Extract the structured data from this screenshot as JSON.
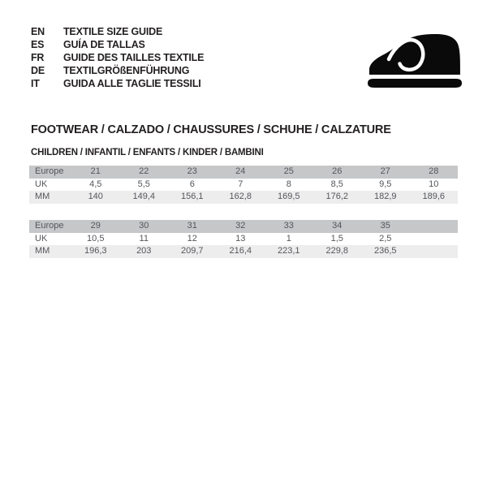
{
  "header": {
    "languages": [
      {
        "code": "EN",
        "label": "TEXTILE SIZE GUIDE"
      },
      {
        "code": "ES",
        "label": "GUÍA DE TALLAS"
      },
      {
        "code": "FR",
        "label": "GUIDE DES TAILLES TEXTILE"
      },
      {
        "code": "DE",
        "label": "TEXTILGRÖßENFÜHRUNG"
      },
      {
        "code": "IT",
        "label": "GUIDA ALLE TAGLIE TESSILI"
      }
    ],
    "icon": "children-shoe-icon"
  },
  "section": {
    "title": "FOOTWEAR / CALZADO / CHAUSSURES / SCHUHE / CALZATURE",
    "subtitle": "CHILDREN / INFANTIL / ENFANTS / KINDER / BAMBINI"
  },
  "tables": [
    {
      "name": "children-sizes-21-28",
      "rows": [
        {
          "label": "Europe",
          "values": [
            "21",
            "22",
            "23",
            "24",
            "25",
            "26",
            "27",
            "28"
          ]
        },
        {
          "label": "UK",
          "values": [
            "4,5",
            "5,5",
            "6",
            "7",
            "8",
            "8,5",
            "9,5",
            "10"
          ]
        },
        {
          "label": "MM",
          "values": [
            "140",
            "149,4",
            "156,1",
            "162,8",
            "169,5",
            "176,2",
            "182,9",
            "189,6"
          ]
        }
      ]
    },
    {
      "name": "children-sizes-29-35",
      "rows": [
        {
          "label": "Europe",
          "values": [
            "29",
            "30",
            "31",
            "32",
            "33",
            "34",
            "35",
            ""
          ]
        },
        {
          "label": "UK",
          "values": [
            "10,5",
            "11",
            "12",
            "13",
            "1",
            "1,5",
            "2,5",
            ""
          ]
        },
        {
          "label": "MM",
          "values": [
            "196,3",
            "203",
            "209,7",
            "216,4",
            "223,1",
            "229,8",
            "236,5",
            ""
          ]
        }
      ]
    }
  ],
  "colors": {
    "ink": "#231f20",
    "table_text": "#55565a",
    "header_row": "#c6c7c9",
    "stripe_row": "#ededee",
    "background": "#ffffff"
  }
}
